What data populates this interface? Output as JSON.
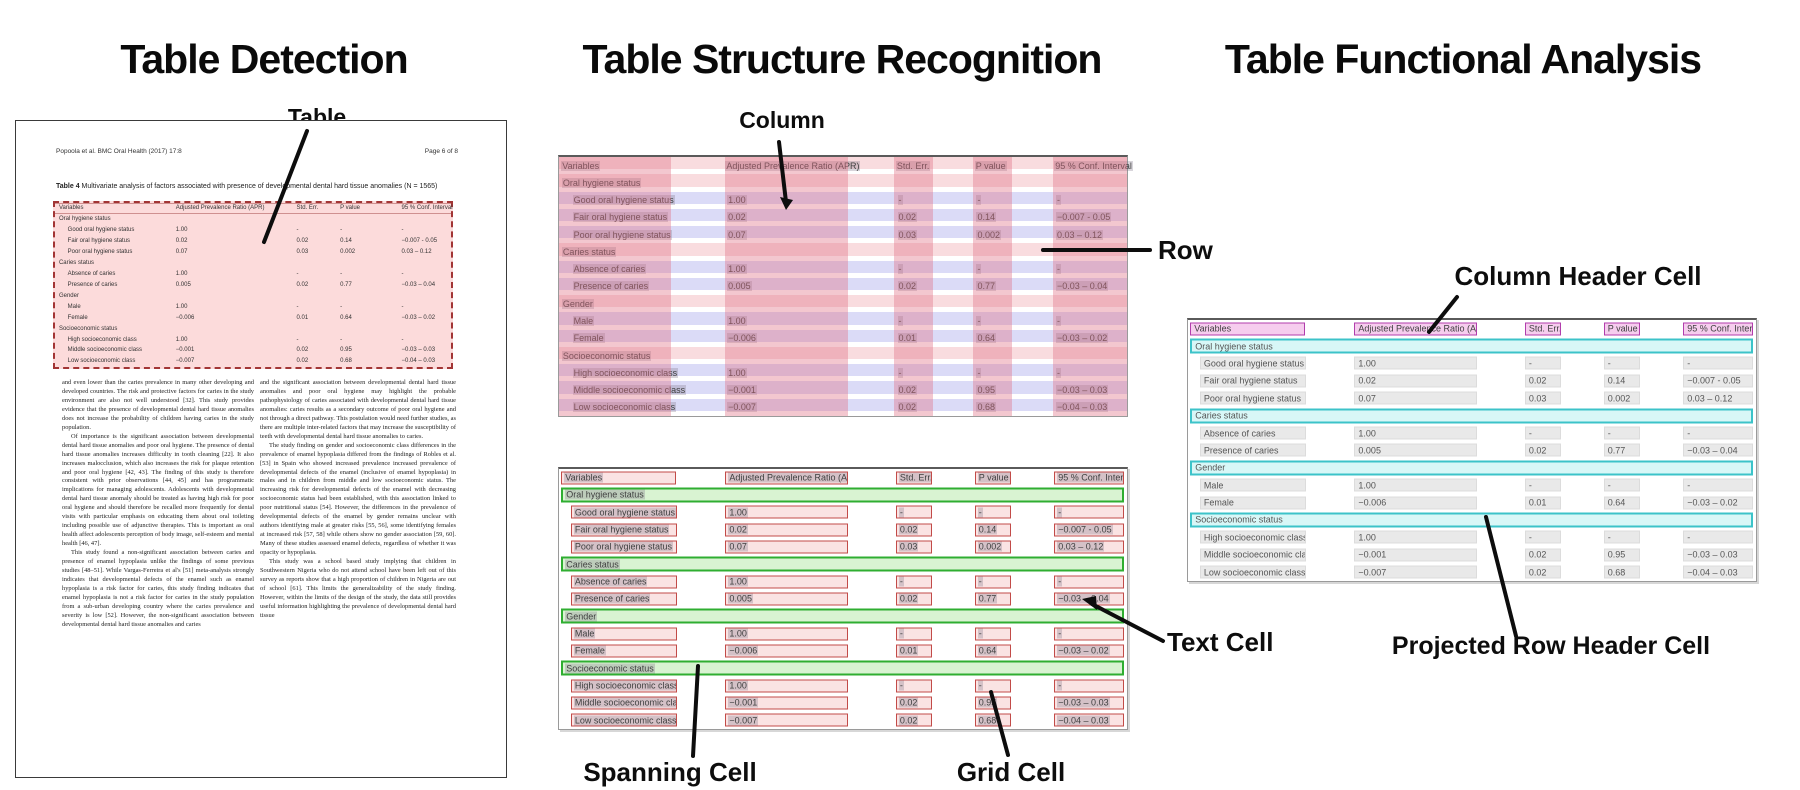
{
  "titles": {
    "panel1": "Table Detection",
    "panel2": "Table Structure Recognition",
    "panel3": "Table Functional Analysis"
  },
  "annotations": {
    "table": "Table",
    "column": "Column",
    "row": "Row",
    "spanning_cell": "Spanning Cell",
    "grid_cell": "Grid Cell",
    "text_cell": "Text Cell",
    "column_header_cell": "Column Header Cell",
    "projected_row_header_cell": "Projected Row Header Cell"
  },
  "document": {
    "header_left": "Popoola et al. BMC Oral Health  (2017) 17:8",
    "header_right": "Page 6 of 8",
    "caption_bold": "Table 4",
    "caption_rest": " Multivariate analysis of factors associated with presence of developmental dental hard tissue anomalies (N = 1565)",
    "body_left": [
      "and even lower than the caries prevalence in many other developing and developed countries. The risk and protective factors for caries in the study environment are also not well understood [32]. This study provides evidence that the presence of developmental dental hard tissue anomalies does not increase the probability of children having caries in the study population.",
      "Of importance is the significant association between developmental dental hard tissue anomalies and poor oral hygiene. The presence of dental hard tissue anomalies increases difficulty in tooth cleaning [22]. It also increases malocclusion, which also increases the risk for plaque retention and poor oral hygiene [42, 43]. The finding of this study is therefore consistent with prior observations [44, 45] and has programmatic implications for managing adolescents. Adolescents with developmental dental hard tissue anomaly should be treated as having high risk for poor oral hygiene and should therefore be recalled more frequently for dental visits with particular emphasis on educating them about oral toileting including possible use of adjunctive therapies. This is important as oral health affect adolescents perception of body image, self-esteem and mental health [46, 47].",
      "This study found a non-significant association between caries and presence of enamel hypoplasia unlike the findings of some previous studies [48–51]. While Vargas-Ferreira et al's [51] meta-analysis strongly indicates that developmental defects of the enamel such as enamel hypoplasia is a risk factor for caries, this study finding indicates that enamel hypoplasia is not a risk factor for caries in the study population from a sub-urban developing country where the caries prevalence and severity is low [52]. However, the non-significant association between developmental dental hard tissue anomalies and caries"
    ],
    "body_right": [
      "and the significant association between developmental dental hard tissue anomalies and poor oral hygiene may highlight the probable pathophysiology of caries associated with developmental dental hard tissue anomalies: caries results as a secondary outcome of poor oral hygiene and not through a direct pathway. This postulation would need further studies, as there are multiple inter-related factors that may increase the susceptibility of teeth with developmental dental hard tissue anomalies to caries.",
      "The study finding on gender and socioeconomic class differences in the prevalence of enamel hypoplasia differed from the findings of Robles et al. [53] in Spain who showed increased prevalence increased prevalence of developmental defects of the enamel (inclusive of enamel hypoplasia) in males and in children from middle and low socioeconomic status. The increasing risk for developmental defects of the enamel with decreasing socioeconomic status had been established, with this association linked to poor nutritional status [54]. However, the differences in the prevalence of developmental defects of the enamel by gender remains unclear with authors identifying male at greater risks [55, 56], some identifying females at increased risk [57, 58] while others show no gender association [59, 60]. Many of these studies assessed enamel defects, regardless of whether it was opacity or hypoplasia.",
      "This study was a school based study implying that children in Southwestern Nigeria who do not attend school have been left out of this survey as reports show that a high proportion of children in Nigeria are out of school [61]. This limits the generalizability of the study finding. However, within the limits of the design of the study, the data still provides useful information highlighting the prevalence of developmental dental hard tissue"
    ]
  },
  "table": {
    "columns": [
      "Variables",
      "Adjusted Prevalence Ratio (APR)",
      "Std. Err.",
      "P value",
      "95 % Conf. Interval"
    ],
    "rows": [
      {
        "type": "section",
        "label": "Oral hygiene status"
      },
      {
        "type": "data",
        "cells": [
          "Good oral hygiene status",
          "1.00",
          "-",
          "-",
          "-"
        ]
      },
      {
        "type": "data",
        "cells": [
          "Fair oral hygiene status",
          "0.02",
          "0.02",
          "0.14",
          "−0.007 - 0.05"
        ]
      },
      {
        "type": "data",
        "cells": [
          "Poor oral hygiene status",
          "0.07",
          "0.03",
          "0.002",
          "0.03 – 0.12"
        ]
      },
      {
        "type": "section",
        "label": "Caries status"
      },
      {
        "type": "data",
        "cells": [
          "Absence of caries",
          "1.00",
          "-",
          "-",
          "-"
        ]
      },
      {
        "type": "data",
        "cells": [
          "Presence of caries",
          "0.005",
          "0.02",
          "0.77",
          "−0.03 – 0.04"
        ]
      },
      {
        "type": "section",
        "label": "Gender"
      },
      {
        "type": "data",
        "cells": [
          "Male",
          "1.00",
          "-",
          "-",
          "-"
        ]
      },
      {
        "type": "data",
        "cells": [
          "Female",
          "−0.006",
          "0.01",
          "0.64",
          "−0.03 – 0.02"
        ]
      },
      {
        "type": "section",
        "label": "Socioeconomic status"
      },
      {
        "type": "data",
        "cells": [
          "High socioeconomic class",
          "1.00",
          "-",
          "-",
          "-"
        ]
      },
      {
        "type": "data",
        "cells": [
          "Middle socioeconomic class",
          "−0.001",
          "0.02",
          "0.95",
          "−0.03 – 0.03"
        ]
      },
      {
        "type": "data",
        "cells": [
          "Low socioeconomic class",
          "−0.007",
          "0.02",
          "0.68",
          "−0.04 – 0.03"
        ]
      }
    ]
  },
  "colors": {
    "detection_fill": "rgba(247,170,170,0.42)",
    "detection_border": "#a23535",
    "column_stripe": "rgba(224,116,134,0.40)",
    "row_band": "rgba(150,150,232,0.34)",
    "grid_cell_border": "#c24b48",
    "spanning_cell_border": "#2fae31",
    "column_header_border": "#b13dac",
    "projected_row_header_border": "#3cc3c9",
    "annotation_line": "#0d0d0d"
  }
}
